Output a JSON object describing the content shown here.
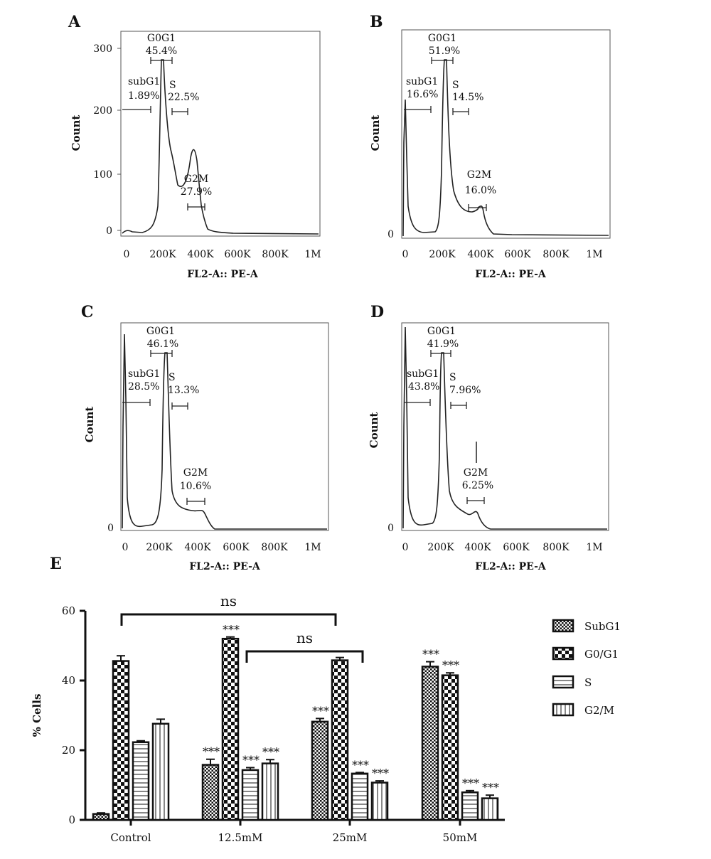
{
  "histograms": [
    {
      "label": "A",
      "xlabel": "FL2-A:: PE-A",
      "ylabel": "Count",
      "x_ticks": [
        "0",
        "200K",
        "400K",
        "600K",
        "800K",
        "1M"
      ],
      "y_ticks": [
        "0",
        "100",
        "200",
        "300"
      ],
      "gates": [
        {
          "name": "subG1",
          "value": "1.89%"
        },
        {
          "name": "G0G1",
          "value": "45.4%"
        },
        {
          "name": "S",
          "value": "22.5%"
        },
        {
          "name": "G2M",
          "value": "27.9%"
        }
      ]
    },
    {
      "label": "B",
      "xlabel": "FL2-A:: PE-A",
      "ylabel": "Count",
      "x_ticks": [
        "0",
        "200K",
        "400K",
        "600K",
        "800K",
        "1M"
      ],
      "y_ticks": [
        "0"
      ],
      "gates": [
        {
          "name": "subG1",
          "value": "16.6%"
        },
        {
          "name": "G0G1",
          "value": "51.9%"
        },
        {
          "name": "S",
          "value": "14.5%"
        },
        {
          "name": "G2M",
          "value": "16.0%"
        }
      ]
    },
    {
      "label": "C",
      "xlabel": "FL2-A:: PE-A",
      "ylabel": "Count",
      "x_ticks": [
        "0",
        "200K",
        "400K",
        "600K",
        "800K",
        "1M"
      ],
      "y_ticks": [
        "0"
      ],
      "gates": [
        {
          "name": "subG1",
          "value": "28.5%"
        },
        {
          "name": "G0G1",
          "value": "46.1%"
        },
        {
          "name": "S",
          "value": "13.3%"
        },
        {
          "name": "G2M",
          "value": "10.6%"
        }
      ]
    },
    {
      "label": "D",
      "xlabel": "FL2-A:: PE-A",
      "ylabel": "Count",
      "x_ticks": [
        "0",
        "200K",
        "400K",
        "600K",
        "800K",
        "1M"
      ],
      "y_ticks": [
        "0"
      ],
      "gates": [
        {
          "name": "subG1",
          "value": "43.8%"
        },
        {
          "name": "G0G1",
          "value": "41.9%"
        },
        {
          "name": "S",
          "value": "7.96%"
        },
        {
          "name": "G2M",
          "value": "6.25%"
        }
      ]
    }
  ],
  "chart_data": {
    "type": "bar",
    "label": "E",
    "ylabel": "% Cells",
    "ylim": [
      0,
      60
    ],
    "y_ticks": [
      0,
      20,
      40,
      60
    ],
    "categories": [
      "Control",
      "12.5mM",
      "25mM",
      "50mM"
    ],
    "series": [
      {
        "name": "SubG1",
        "values": [
          1.7,
          15.8,
          28.2,
          44.0
        ],
        "errors": [
          0.3,
          1.6,
          0.9,
          1.4
        ],
        "stars": [
          "",
          "***",
          "***",
          "***"
        ]
      },
      {
        "name": "G0/G1",
        "values": [
          45.6,
          52.0,
          45.8,
          41.5
        ],
        "errors": [
          1.5,
          0.5,
          0.8,
          0.7
        ],
        "stars": [
          "",
          "***",
          "",
          "***"
        ]
      },
      {
        "name": "S",
        "values": [
          22.3,
          14.3,
          13.3,
          7.9
        ],
        "errors": [
          0.4,
          0.7,
          0.3,
          0.5
        ],
        "stars": [
          "",
          "***",
          "***",
          "***"
        ]
      },
      {
        "name": "G2/M",
        "values": [
          27.6,
          16.2,
          10.7,
          6.2
        ],
        "errors": [
          1.3,
          1.1,
          0.5,
          0.9
        ],
        "stars": [
          "",
          "***",
          "***",
          "***"
        ]
      }
    ],
    "comparisons": [
      {
        "from": "Control",
        "to": "25mM",
        "label": "ns"
      },
      {
        "from": "12.5mM",
        "to": "25mM",
        "label": "ns"
      }
    ],
    "grid": false,
    "legend": "right"
  },
  "colors": {
    "ink": "#111111",
    "axis": "#222222",
    "frame": "#555555",
    "curve": "#222222",
    "bar_fill": "#ffffff"
  }
}
